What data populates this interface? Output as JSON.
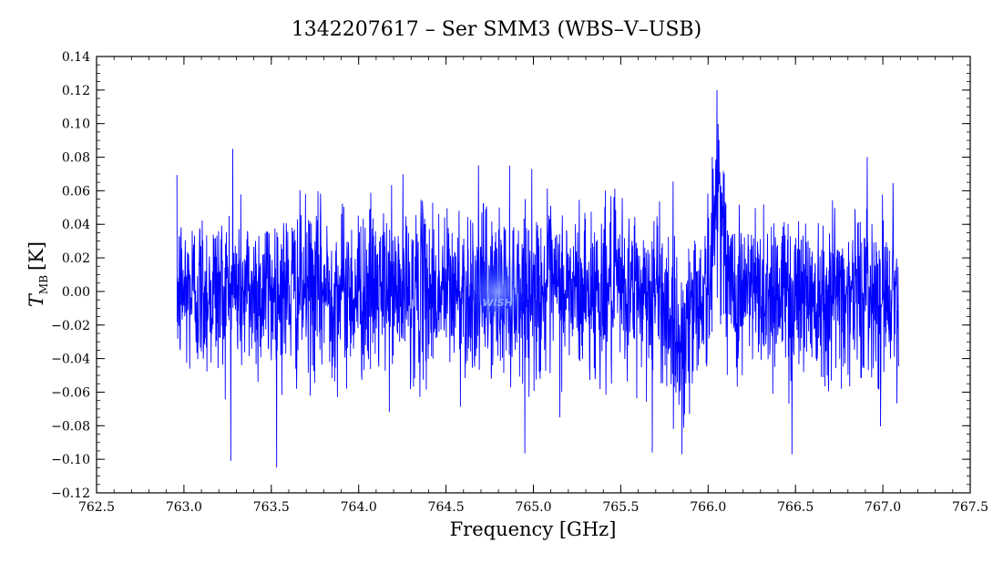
{
  "chart_data": {
    "type": "line",
    "title": "1342207617 – Ser SMM3 (WBS–V–USB)",
    "xlabel": "Frequency [GHz]",
    "ylabel": {
      "symbol": "T",
      "subscript": "MB",
      "unit": "[K]"
    },
    "xlim": [
      762.5,
      767.5
    ],
    "ylim": [
      -0.12,
      0.14
    ],
    "xticks": [
      762.5,
      763.0,
      763.5,
      764.0,
      764.5,
      765.0,
      765.5,
      766.0,
      766.5,
      767.0,
      767.5
    ],
    "xtick_labels": [
      "762.5",
      "763.0",
      "763.5",
      "764.0",
      "764.5",
      "765.0",
      "765.5",
      "766.0",
      "766.5",
      "767.0",
      "767.5"
    ],
    "yticks": [
      -0.12,
      -0.1,
      -0.08,
      -0.06,
      -0.04,
      -0.02,
      0.0,
      0.02,
      0.04,
      0.06,
      0.08,
      0.1,
      0.12,
      0.14
    ],
    "ytick_labels": [
      "−0.12",
      "−0.10",
      "−0.08",
      "−0.06",
      "−0.04",
      "−0.02",
      "0.00",
      "0.02",
      "0.04",
      "0.06",
      "0.08",
      "0.10",
      "0.12",
      "0.14"
    ],
    "grid": false,
    "series": [
      {
        "color": "#0000ff",
        "x_range": [
          762.96,
          767.09
        ],
        "noise_rms": 0.025,
        "features": [
          {
            "x": 766.05,
            "peak": 0.12,
            "note": "emission line"
          },
          {
            "x": 765.85,
            "peak": -0.097,
            "note": "absorption dip"
          },
          {
            "x": 765.68,
            "peak": -0.096
          },
          {
            "x": 766.48,
            "peak": -0.097
          },
          {
            "x": 763.28,
            "peak": 0.085
          }
        ]
      }
    ],
    "watermark": "WISH"
  }
}
